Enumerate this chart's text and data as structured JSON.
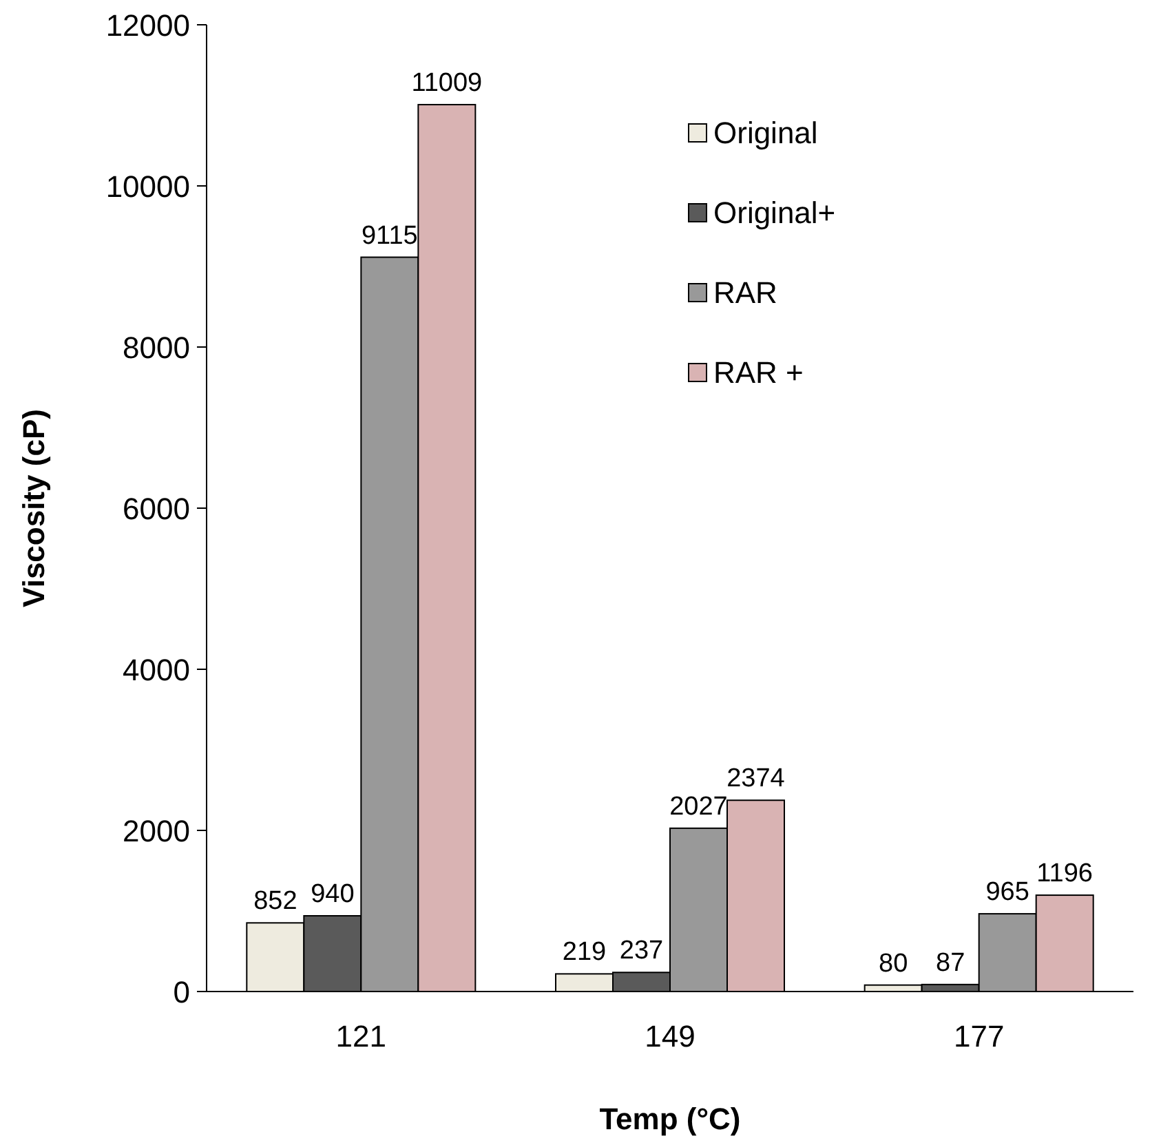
{
  "chart_data": {
    "type": "bar",
    "xlabel": "Temp  (°C)",
    "ylabel": "Viscosity (cP)",
    "categories": [
      "121",
      "149",
      "177"
    ],
    "series": [
      {
        "name": "Original",
        "color": "#eeebdf",
        "values": [
          852,
          219,
          80
        ]
      },
      {
        "name": "Original+",
        "color": "#5a5a5a",
        "values": [
          940,
          237,
          87
        ]
      },
      {
        "name": "RAR",
        "color": "#999999",
        "values": [
          9115,
          2027,
          965
        ]
      },
      {
        "name": "RAR +",
        "color": "#d9b3b3",
        "values": [
          11009,
          2374,
          1196
        ]
      }
    ],
    "ylim": [
      0,
      12000
    ],
    "yticks": [
      0,
      2000,
      4000,
      6000,
      8000,
      10000,
      12000
    ],
    "grid": false,
    "legend": "top right",
    "data_labels": true
  }
}
